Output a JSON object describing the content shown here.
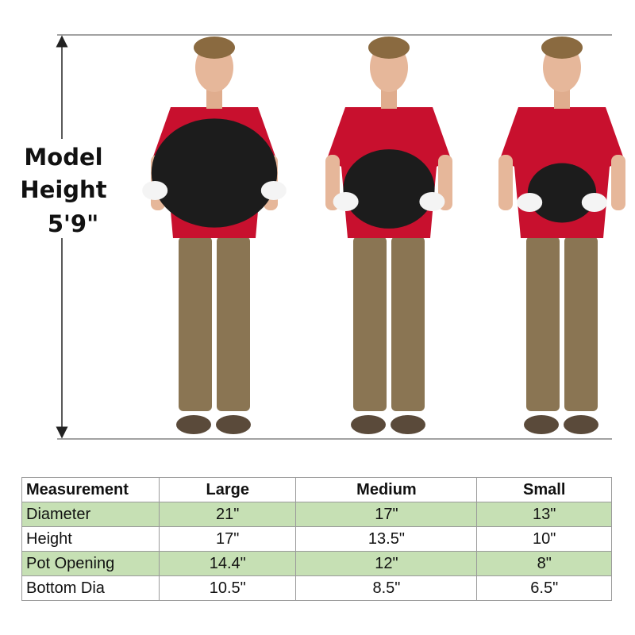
{
  "model_label": {
    "lines": [
      "Model",
      "Height",
      "5'9\""
    ]
  },
  "table": {
    "header": [
      "Measurement",
      "Large",
      "Medium",
      "Small"
    ],
    "rows": [
      [
        "Diameter",
        "21\"",
        "17\"",
        "13\""
      ],
      [
        "Height",
        "17\"",
        "13.5\"",
        "10\""
      ],
      [
        "Pot Opening",
        "14.4\"",
        "12\"",
        "8\""
      ],
      [
        "Bottom Dia",
        "10.5\"",
        "8.5\"",
        "6.5\""
      ]
    ]
  }
}
